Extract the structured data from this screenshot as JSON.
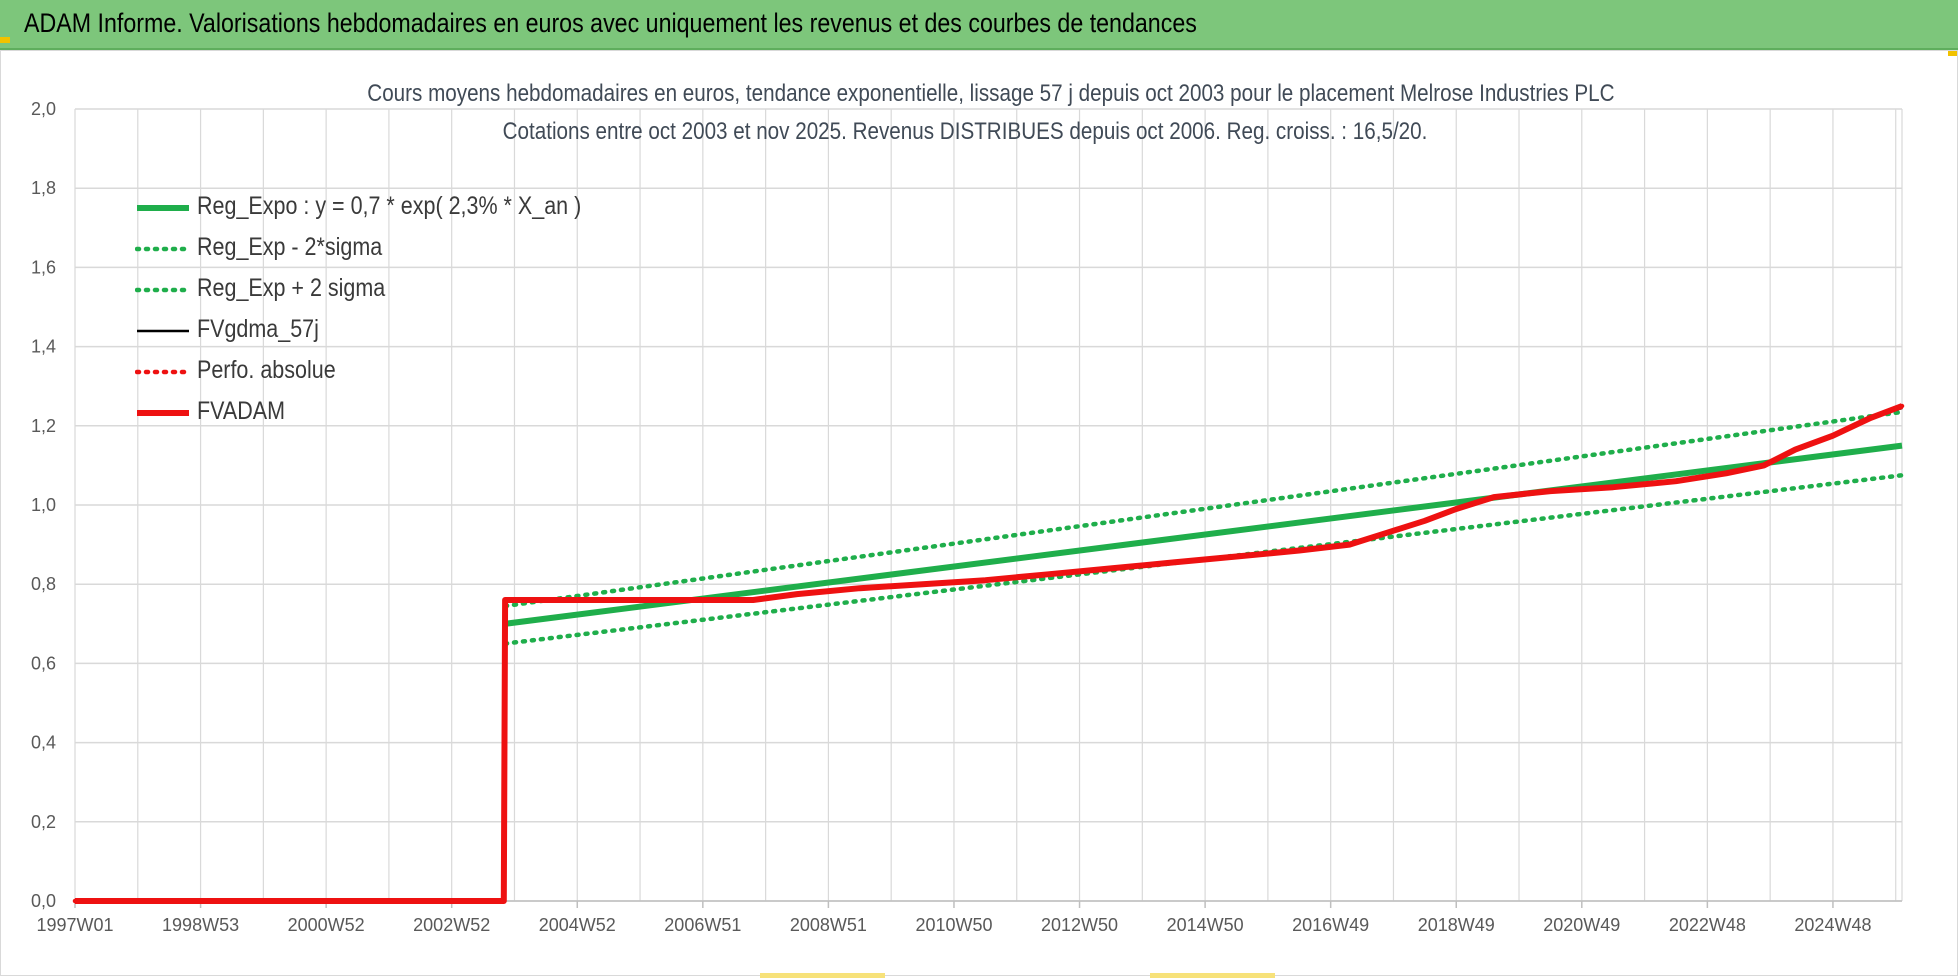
{
  "header": {
    "title": "ADAM Informe. Valorisations hebdomadaires en euros avec uniquement les revenus et des courbes de tendances"
  },
  "colors": {
    "header_bg": "#7dc67b",
    "trend_green": "#1fae4b",
    "dotted_green": "#1fae4b",
    "fv_black": "#000000",
    "fvadam_red": "#ee1111",
    "perfo_red": "#ee1111",
    "grid": "#d9d9d9"
  },
  "chart_data": {
    "type": "line",
    "title_line1": "Cours moyens hebdomadaires en euros, tendance exponentielle, lissage 57 j depuis oct 2003 pour le placement Melrose Industries PLC",
    "title_line2": "Cotations entre oct 2003 et nov 2025. Revenus DISTRIBUES depuis oct 2006. Reg. croiss. : 16,5/20.",
    "ylim": [
      0,
      2.0
    ],
    "y_ticks": [
      "0,0",
      "0,2",
      "0,4",
      "0,6",
      "0,8",
      "1,0",
      "1,2",
      "1,4",
      "1,6",
      "1,8",
      "2,0"
    ],
    "x_ticks": [
      "1997W01",
      "1998W53",
      "2000W52",
      "2002W52",
      "2004W52",
      "2006W51",
      "2008W51",
      "2010W50",
      "2012W50",
      "2014W50",
      "2016W49",
      "2018W49",
      "2020W49",
      "2022W48",
      "2024W48"
    ],
    "xlim": [
      1997.0,
      2026.1
    ],
    "grid": true,
    "legend_position": "top-left",
    "legend": [
      {
        "label": "Reg_Expo : y = 0,7 * exp( 2,3% *  X_an )",
        "style": "solid-thick",
        "color": "#1fae4b"
      },
      {
        "label": "Reg_Exp - 2*sigma",
        "style": "dotted",
        "color": "#1fae4b"
      },
      {
        "label": "Reg_Exp + 2 sigma",
        "style": "dotted",
        "color": "#1fae4b"
      },
      {
        "label": "FVgdma_57j",
        "style": "solid-thin",
        "color": "#000000"
      },
      {
        "label": "Perfo. absolue",
        "style": "dotted",
        "color": "#ee1111"
      },
      {
        "label": "FVADAM",
        "style": "solid-thick",
        "color": "#ee1111"
      }
    ],
    "series": [
      {
        "name": "Reg_Expo : y = 0,7 * exp( 2,3% *  X_an )",
        "x": [
          2003.85,
          2026.1
        ],
        "y": [
          0.7,
          1.15
        ]
      },
      {
        "name": "Reg_Exp - 2*sigma",
        "x": [
          2003.85,
          2026.1
        ],
        "y": [
          0.65,
          1.075
        ]
      },
      {
        "name": "Reg_Exp + 2 sigma",
        "x": [
          2003.85,
          2026.1
        ],
        "y": [
          0.745,
          1.235
        ]
      },
      {
        "name": "FVgdma_57j",
        "x": [
          1997.0,
          2003.83,
          2003.85,
          2007.8,
          2008.5,
          2009.5,
          2010.5,
          2011.5,
          2012.5,
          2013.5,
          2014.5,
          2015.5,
          2016.5,
          2017.3,
          2017.9,
          2018.5,
          2019.0,
          2019.6,
          2020.5,
          2021.5,
          2022.5,
          2023.3,
          2023.9,
          2024.4,
          2025.0,
          2025.6,
          2026.1
        ],
        "y": [
          0.0,
          0.0,
          0.76,
          0.76,
          0.775,
          0.79,
          0.8,
          0.81,
          0.825,
          0.84,
          0.855,
          0.87,
          0.885,
          0.9,
          0.93,
          0.96,
          0.99,
          1.02,
          1.035,
          1.045,
          1.06,
          1.08,
          1.1,
          1.14,
          1.175,
          1.22,
          1.245
        ]
      },
      {
        "name": "Perfo. absolue",
        "x": [
          1997.0,
          2003.83,
          2003.85,
          2007.8,
          2008.5,
          2009.5,
          2010.5,
          2011.5,
          2012.5,
          2013.5,
          2014.5,
          2015.5,
          2016.5,
          2017.3,
          2017.9,
          2018.5,
          2019.0,
          2019.6,
          2020.5,
          2021.5,
          2022.5,
          2023.3,
          2023.9,
          2024.4,
          2025.0,
          2025.6,
          2026.1
        ],
        "y": [
          0.0,
          0.0,
          0.76,
          0.76,
          0.775,
          0.79,
          0.8,
          0.81,
          0.825,
          0.84,
          0.855,
          0.87,
          0.885,
          0.9,
          0.93,
          0.96,
          0.99,
          1.02,
          1.035,
          1.045,
          1.06,
          1.08,
          1.1,
          1.14,
          1.175,
          1.22,
          1.25
        ]
      },
      {
        "name": "FVADAM",
        "x": [
          1997.0,
          2003.83,
          2003.85,
          2007.8,
          2008.5,
          2009.5,
          2010.5,
          2011.5,
          2012.5,
          2013.5,
          2014.5,
          2015.5,
          2016.5,
          2017.3,
          2017.9,
          2018.5,
          2019.0,
          2019.6,
          2020.5,
          2021.5,
          2022.5,
          2023.3,
          2023.9,
          2024.4,
          2025.0,
          2025.6,
          2026.1
        ],
        "y": [
          0.0,
          0.0,
          0.76,
          0.76,
          0.775,
          0.79,
          0.8,
          0.81,
          0.825,
          0.84,
          0.855,
          0.87,
          0.885,
          0.9,
          0.93,
          0.96,
          0.99,
          1.02,
          1.035,
          1.045,
          1.06,
          1.08,
          1.1,
          1.14,
          1.175,
          1.22,
          1.25
        ]
      }
    ]
  }
}
